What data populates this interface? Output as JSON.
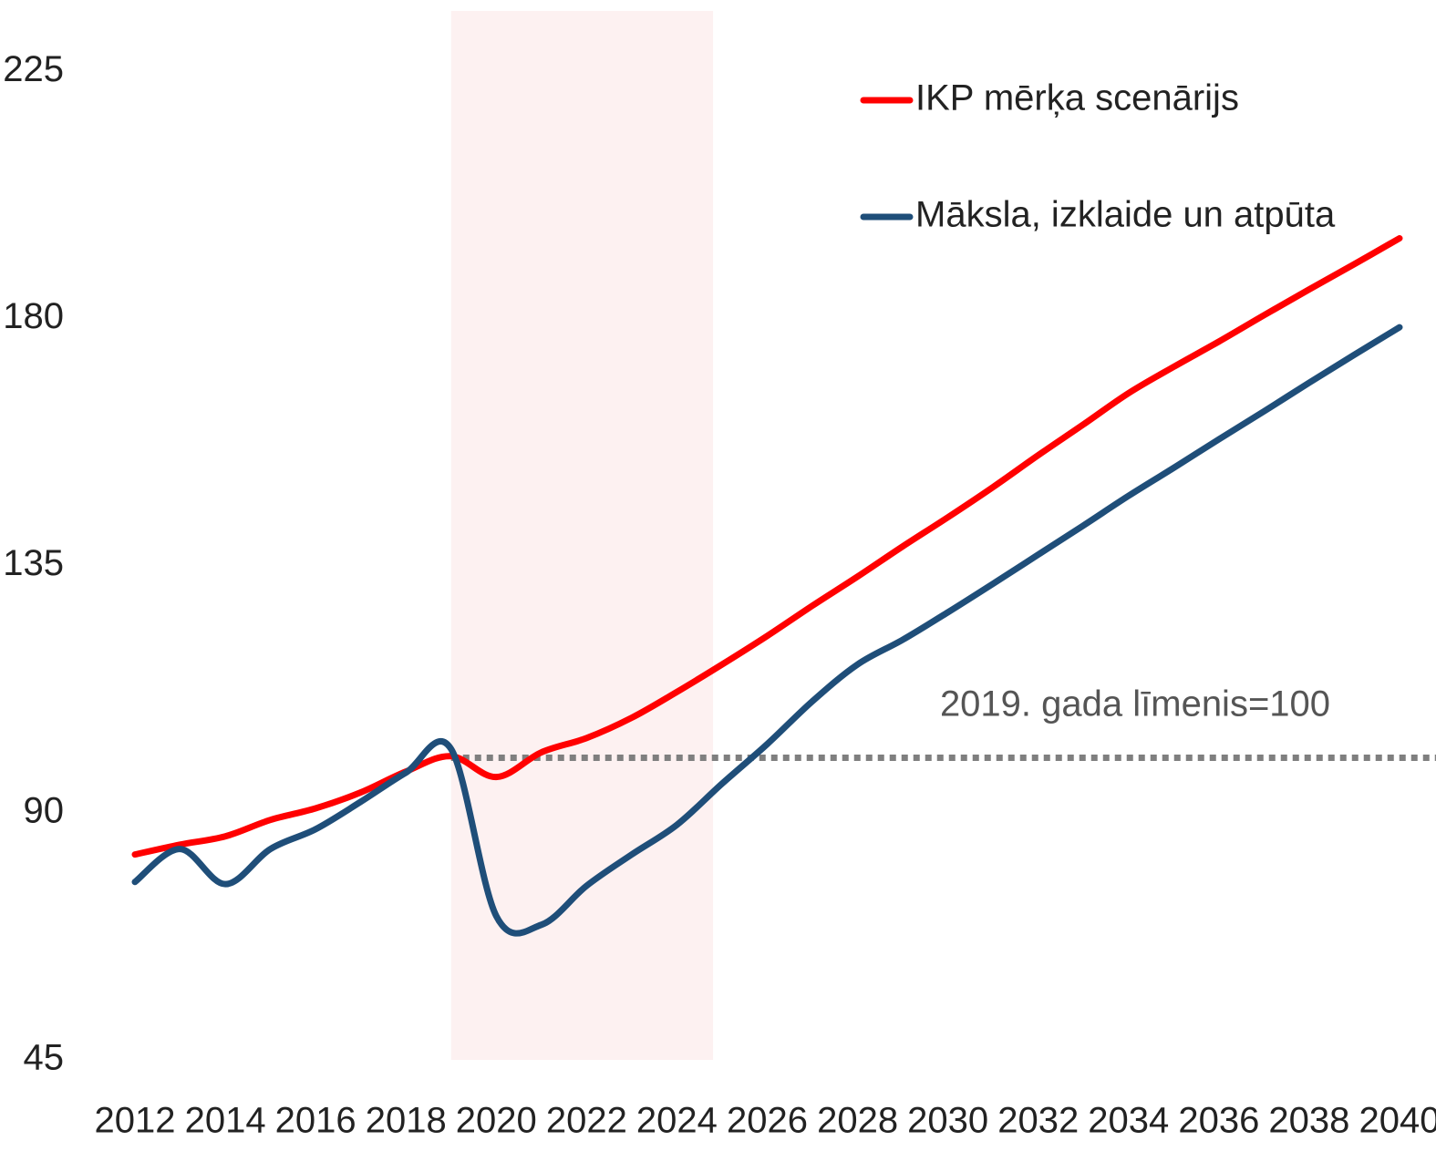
{
  "chart_data": {
    "type": "line",
    "x": [
      2012,
      2013,
      2014,
      2015,
      2016,
      2017,
      2018,
      2019,
      2020,
      2021,
      2022,
      2023,
      2024,
      2025,
      2026,
      2027,
      2028,
      2029,
      2030,
      2031,
      2032,
      2033,
      2034,
      2035,
      2036,
      2037,
      2038,
      2039,
      2040
    ],
    "series": [
      {
        "name": "IKP mērķa scenārijs",
        "color": "#ff0000",
        "values": [
          82.4,
          84.2,
          85.7,
          88.7,
          90.8,
          93.7,
          97.5,
          100.3,
          96.5,
          101,
          103.6,
          107.3,
          112,
          117,
          122.2,
          127.7,
          133,
          138.5,
          143.8,
          149.3,
          155.1,
          160.7,
          166.4,
          171.2,
          175.8,
          180.6,
          185.3,
          189.9,
          194.6
        ]
      },
      {
        "name": "Māksla, izklaide un atpūta",
        "color": "#1f4e79",
        "values": [
          77.4,
          83.4,
          77,
          83.4,
          87,
          92,
          97.3,
          101.6,
          71.2,
          69.6,
          76.7,
          82.4,
          87.8,
          95.3,
          102.5,
          110.3,
          117,
          121.5,
          126.5,
          131.7,
          137,
          142.3,
          147.7,
          152.8,
          158,
          163.1,
          168.3,
          173.4,
          178.4
        ]
      }
    ],
    "xlim": [
      2012,
      2040
    ],
    "xticks": [
      2012,
      2014,
      2016,
      2018,
      2020,
      2022,
      2024,
      2026,
      2028,
      2030,
      2032,
      2034,
      2036,
      2038,
      2040
    ],
    "ylim": [
      45,
      236
    ],
    "yticks": [
      45,
      90,
      135,
      180,
      225
    ],
    "shade": [
      2019,
      2024.8
    ],
    "reference": {
      "value": 100,
      "from": 2019,
      "label": "2019. gada līmenis=100"
    },
    "legend": "top-right"
  }
}
